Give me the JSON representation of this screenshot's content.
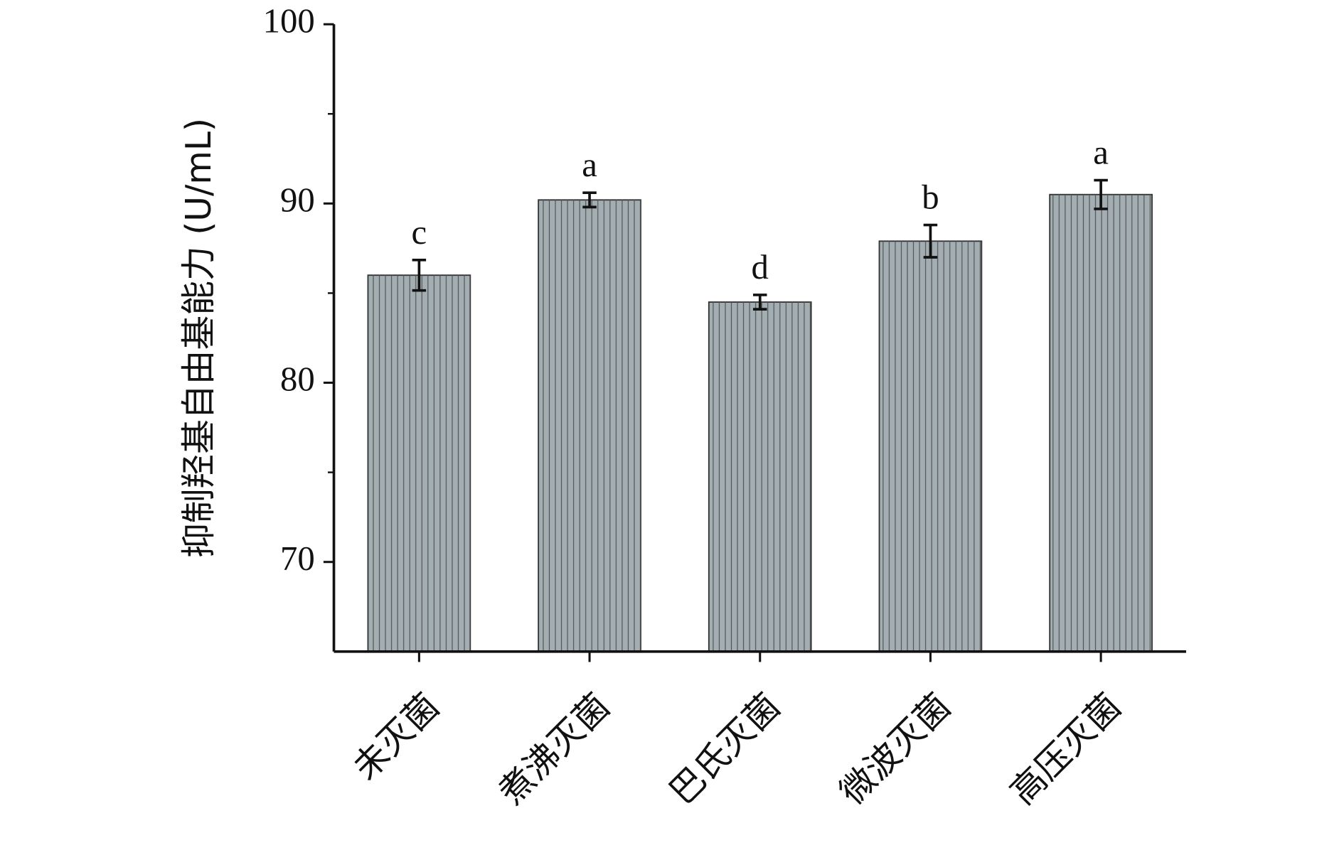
{
  "chart_data": {
    "type": "bar",
    "y_label": "抑制羟基自由基能力 (U/mL)",
    "categories": [
      "未灭菌",
      "煮沸灭菌",
      "巴氏灭菌",
      "微波灭菌",
      "高压灭菌"
    ],
    "values": [
      86.0,
      90.2,
      84.5,
      87.9,
      90.5
    ],
    "errors": [
      0.85,
      0.4,
      0.4,
      0.9,
      0.8
    ],
    "labels": [
      "c",
      "a",
      "d",
      "b",
      "a"
    ],
    "color": "#a2aeb2",
    "ylim": [
      65,
      100
    ],
    "yticks": [
      70,
      80,
      90,
      100
    ],
    "minor_yticks": [
      75,
      85,
      95
    ]
  }
}
